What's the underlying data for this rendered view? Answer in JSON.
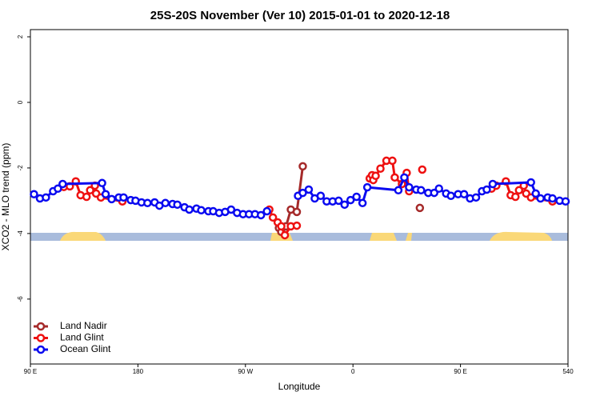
{
  "chart_data": {
    "type": "line",
    "title": "25S-20S November (Ver 10)   2015-01-01 to 2020-12-18",
    "x_label": "Longitude",
    "y_label": "XCO2 - MLO trend (ppm)",
    "xlim": [
      90,
      540
    ],
    "xticks": [
      {
        "value": 90,
        "label": "90 E"
      },
      180,
      {
        "value": 270,
        "label": "90 W"
      },
      {
        "value": 360,
        "label": "0"
      },
      {
        "value": 450,
        "label": "90 E"
      },
      540
    ],
    "ylim": [
      -7.98,
      2.22
    ],
    "yticks": [
      -6,
      -4,
      -2,
      0,
      2
    ],
    "legend": "bottom-left",
    "series": [
      {
        "name": "Land Nadir",
        "color": "#a52a2a",
        "x": [
          298,
          300,
          304,
          308,
          313,
          318,
          null,
          416
        ],
        "values": [
          -3.83,
          -3.95,
          -3.78,
          -3.27,
          -3.34,
          -1.95,
          null,
          -3.22
        ]
      },
      {
        "name": "Land Glint",
        "color": "#ee1111",
        "x": [
          118,
          123,
          128,
          132,
          137,
          140,
          144,
          145,
          149,
          167,
          null,
          290,
          293,
          297,
          300,
          303,
          308,
          313,
          null,
          374,
          376,
          377,
          379,
          383,
          388,
          393,
          395,
          401,
          405,
          407,
          null,
          418,
          null,
          476,
          480,
          488,
          492,
          496,
          499,
          503,
          505,
          509,
          527
        ],
        "values": [
          -2.58,
          -2.56,
          -2.41,
          -2.83,
          -2.88,
          -2.68,
          -2.54,
          -2.78,
          -2.9,
          -3.02,
          null,
          -3.27,
          -3.51,
          -3.66,
          -3.78,
          -4.05,
          -3.78,
          -3.76,
          null,
          -2.32,
          -2.22,
          -2.37,
          -2.24,
          -2.02,
          -1.78,
          -1.78,
          -2.29,
          -2.49,
          -2.15,
          -2.71,
          null,
          -2.05,
          null,
          -2.63,
          -2.54,
          -2.41,
          -2.83,
          -2.88,
          -2.68,
          -2.54,
          -2.78,
          -2.9,
          -3.02
        ]
      },
      {
        "name": "Ocean Glint",
        "color": "#0a0af0",
        "x": [
          93,
          98,
          103,
          109,
          113,
          117,
          150,
          153,
          158,
          164,
          168,
          174,
          178,
          183,
          188,
          194,
          198,
          203,
          209,
          213,
          219,
          223,
          229,
          233,
          239,
          243,
          248,
          253,
          258,
          263,
          268,
          273,
          278,
          283,
          288,
          null,
          314,
          318,
          323,
          328,
          333,
          338,
          343,
          348,
          353,
          358,
          363,
          368,
          372,
          398,
          403,
          407,
          413,
          417,
          423,
          428,
          432,
          438,
          442,
          448,
          453,
          458,
          463,
          468,
          472,
          477,
          509,
          513,
          517,
          523,
          527,
          533,
          538
        ],
        "values": [
          -2.8,
          -2.93,
          -2.9,
          -2.71,
          -2.63,
          -2.49,
          -2.46,
          -2.8,
          -2.95,
          -2.9,
          -2.9,
          -2.98,
          -3.0,
          -3.05,
          -3.07,
          -3.05,
          -3.15,
          -3.07,
          -3.1,
          -3.12,
          -3.2,
          -3.27,
          -3.24,
          -3.29,
          -3.32,
          -3.32,
          -3.37,
          -3.34,
          -3.27,
          -3.37,
          -3.41,
          -3.41,
          -3.41,
          -3.44,
          -3.32,
          null,
          -2.85,
          -2.76,
          -2.66,
          -2.93,
          -2.85,
          -3.02,
          -3.02,
          -3.0,
          -3.12,
          -2.98,
          -2.88,
          -3.07,
          -2.59,
          -2.68,
          -2.29,
          -2.59,
          -2.66,
          -2.68,
          -2.76,
          -2.76,
          -2.63,
          -2.78,
          -2.85,
          -2.8,
          -2.8,
          -2.93,
          -2.9,
          -2.71,
          -2.66,
          -2.49,
          -2.44,
          -2.78,
          -2.93,
          -2.9,
          -2.93,
          -3.0,
          -3.02
        ]
      }
    ]
  }
}
